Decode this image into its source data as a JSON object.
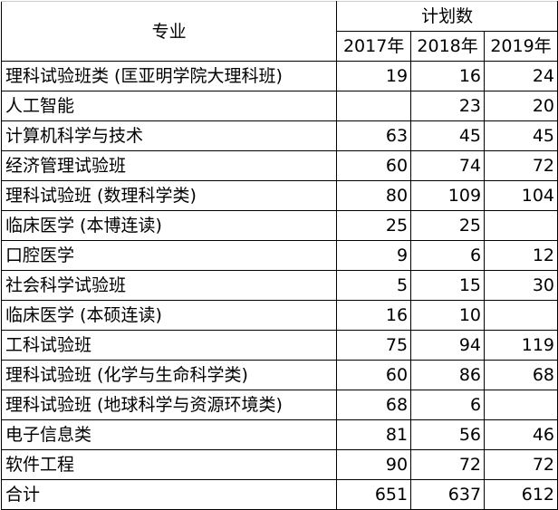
{
  "header": {
    "major": "专业",
    "plan": "计划数",
    "years": [
      "2017年",
      "2018年",
      "2019年"
    ]
  },
  "rows": [
    {
      "name": "理科试验班类 (匡亚明学院大理科班)",
      "v": [
        "19",
        "16",
        "24"
      ]
    },
    {
      "name": "人工智能",
      "v": [
        "",
        "23",
        "20"
      ]
    },
    {
      "name": "计算机科学与技术",
      "v": [
        "63",
        "45",
        "45"
      ]
    },
    {
      "name": "经济管理试验班",
      "v": [
        "60",
        "74",
        "72"
      ]
    },
    {
      "name": "理科试验班 (数理科学类)",
      "v": [
        "80",
        "109",
        "104"
      ]
    },
    {
      "name": "临床医学 (本博连读)",
      "v": [
        "25",
        "25",
        ""
      ]
    },
    {
      "name": "口腔医学",
      "v": [
        "9",
        "6",
        "12"
      ]
    },
    {
      "name": "社会科学试验班",
      "v": [
        "5",
        "15",
        "30"
      ]
    },
    {
      "name": "临床医学 (本硕连读)",
      "v": [
        "16",
        "10",
        ""
      ]
    },
    {
      "name": "工科试验班",
      "v": [
        "75",
        "94",
        "119"
      ]
    },
    {
      "name": "理科试验班 (化学与生命科学类)",
      "v": [
        "60",
        "86",
        "68"
      ]
    },
    {
      "name": "理科试验班 (地球科学与资源环境类)",
      "v": [
        "68",
        "6",
        ""
      ]
    },
    {
      "name": "电子信息类",
      "v": [
        "81",
        "56",
        "46"
      ]
    },
    {
      "name": "软件工程",
      "v": [
        "90",
        "72",
        "72"
      ]
    },
    {
      "name": "合计",
      "v": [
        "651",
        "637",
        "612"
      ]
    }
  ]
}
